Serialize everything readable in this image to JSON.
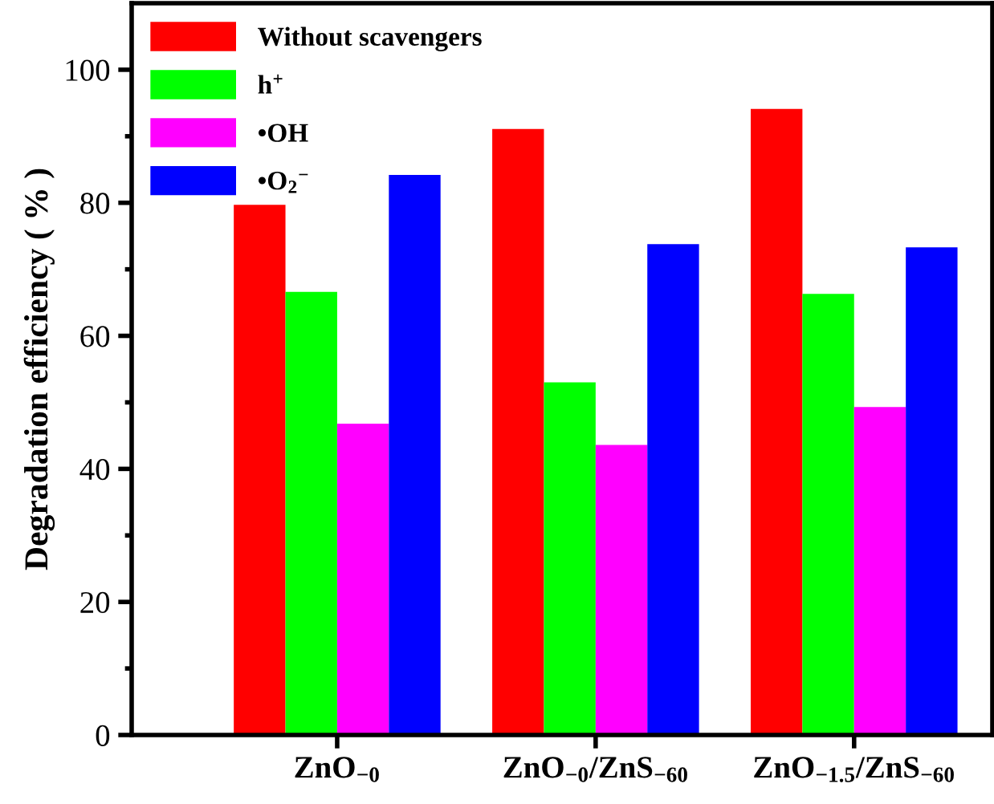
{
  "chart_data": {
    "type": "bar",
    "ylabel": "Degradation efficiency ( % )",
    "categories": [
      "ZnO$_{−0}$",
      "ZnO$_{−0}$/ZnS$_{−60}$",
      "ZnO$_{−1.5}$/ZnS$_{−60}$"
    ],
    "series": [
      {
        "name": "Without scavengers",
        "color": "#ff0000",
        "values": [
          79.7,
          91.1,
          94.1
        ]
      },
      {
        "name": "h$^{+}$",
        "color": "#00ff00",
        "values": [
          66.6,
          53.0,
          66.3
        ]
      },
      {
        "name": "•OH",
        "color": "#ff00ff",
        "values": [
          46.8,
          43.6,
          49.3
        ]
      },
      {
        "name": "•O$_{2}$$^{−}$",
        "color": "#0000ff",
        "values": [
          84.2,
          73.8,
          73.3
        ]
      }
    ],
    "ylim": [
      0,
      110
    ],
    "yticks": [
      0,
      {
        "value": 10,
        "label": null
      },
      20,
      {
        "value": 30,
        "label": null
      },
      40,
      {
        "value": 50,
        "label": null
      },
      60,
      {
        "value": 70,
        "label": null
      },
      80,
      {
        "value": 90,
        "label": null
      },
      100
    ],
    "grid": false,
    "legend": "top left"
  }
}
